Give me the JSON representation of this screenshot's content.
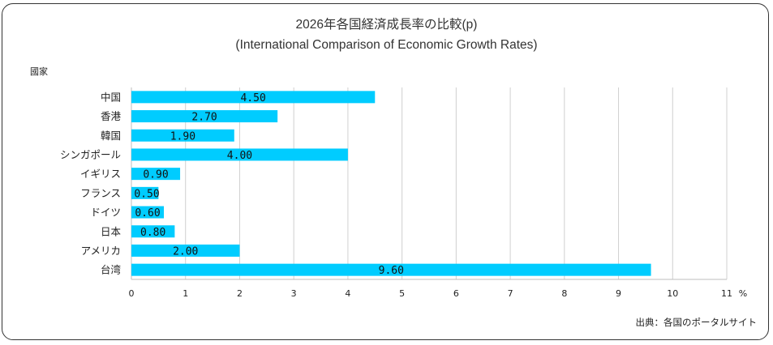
{
  "chart_data": {
    "type": "bar",
    "orientation": "horizontal",
    "title": "2026年各国経済成長率の比較(p)",
    "subtitle": "(International Comparison of Economic Growth Rates)",
    "ylabel": "國家",
    "xlabel": "",
    "x_unit": "%",
    "categories": [
      "中国",
      "香港",
      "韓国",
      "シンガポール",
      "イギリス",
      "フランス",
      "ドイツ",
      "日本",
      "アメリカ",
      "台湾"
    ],
    "values": [
      4.5,
      2.7,
      1.9,
      4.0,
      0.9,
      0.5,
      0.6,
      0.8,
      2.0,
      9.6
    ],
    "value_labels": [
      "4.50",
      "2.70",
      "1.90",
      "4.00",
      "0.90",
      "0.50",
      "0.60",
      "0.80",
      "2.00",
      "9.60"
    ],
    "xticks": [
      "0",
      "1",
      "2",
      "3",
      "4",
      "5",
      "6",
      "7",
      "8",
      "9",
      "10",
      "11"
    ],
    "xlim": [
      0,
      11
    ],
    "grid": true,
    "legend": "none",
    "bar_color": "#00CCFF",
    "grid_color": "#d0d0d0",
    "source": "出典：各国のポータルサイト"
  }
}
